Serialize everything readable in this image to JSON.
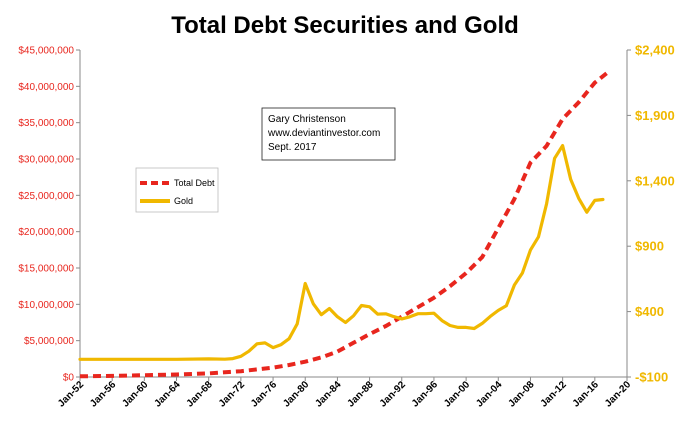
{
  "chart_data": {
    "type": "line",
    "title": "Total Debt Securities and Gold",
    "x_tick_labels": [
      "Jan-52",
      "Jan-56",
      "Jan-60",
      "Jan-64",
      "Jan-68",
      "Jan-72",
      "Jan-76",
      "Jan-80",
      "Jan-84",
      "Jan-88",
      "Jan-92",
      "Jan-96",
      "Jan-00",
      "Jan-04",
      "Jan-08",
      "Jan-12",
      "Jan-16",
      "Jan-20"
    ],
    "xlim": [
      1952,
      2020
    ],
    "y_left": {
      "lim": [
        0,
        45000000
      ],
      "tick_labels": [
        "$0",
        "$5,000,000",
        "$10,000,000",
        "$15,000,000",
        "$20,000,000",
        "$25,000,000",
        "$30,000,000",
        "$35,000,000",
        "$40,000,000",
        "$45,000,000"
      ],
      "color": "#e8261e"
    },
    "y_right": {
      "lim": [
        -100,
        2400
      ],
      "tick_labels": [
        "-$100",
        "$400",
        "$900",
        "$1,400",
        "$1,900",
        "$2,400"
      ],
      "color": "#f0b800"
    },
    "series": [
      {
        "name": "Total Debt",
        "axis": "left",
        "color": "#e8261e",
        "style": "dashed",
        "x": [
          1952,
          1956,
          1960,
          1964,
          1968,
          1972,
          1976,
          1978,
          1980,
          1982,
          1984,
          1986,
          1988,
          1990,
          1992,
          1994,
          1996,
          1998,
          2000,
          2002,
          2004,
          2006,
          2008,
          2010,
          2012,
          2014,
          2016,
          2017.7
        ],
        "values": [
          100000,
          150000,
          250000,
          350000,
          500000,
          800000,
          1300000,
          1650000,
          2100000,
          2700000,
          3500000,
          4700000,
          5900000,
          7000000,
          8300000,
          9600000,
          10900000,
          12500000,
          14300000,
          16500000,
          20500000,
          24500000,
          29500000,
          31800000,
          35500000,
          37800000,
          40500000,
          42000000
        ]
      },
      {
        "name": "Gold",
        "axis": "right",
        "color": "#f0b800",
        "style": "solid",
        "x": [
          1952,
          1956,
          1960,
          1964,
          1968,
          1970,
          1971,
          1972,
          1973,
          1974,
          1975,
          1976,
          1977,
          1978,
          1979,
          1980,
          1981,
          1982,
          1983,
          1984,
          1985,
          1986,
          1987,
          1988,
          1989,
          1990,
          1991,
          1992,
          1993,
          1994,
          1995,
          1996,
          1997,
          1998,
          1999,
          2000,
          2001,
          2002,
          2003,
          2004,
          2005,
          2006,
          2007,
          2008,
          2009,
          2010,
          2011,
          2012,
          2013,
          2014,
          2015,
          2016,
          2017
        ],
        "values": [
          35,
          35,
          35,
          35,
          38,
          36,
          41,
          58,
          97,
          154,
          161,
          125,
          148,
          193,
          306,
          615,
          460,
          376,
          424,
          361,
          317,
          368,
          447,
          437,
          381,
          383,
          362,
          344,
          360,
          384,
          384,
          388,
          331,
          294,
          279,
          279,
          271,
          310,
          363,
          409,
          444,
          603,
          695,
          872,
          972,
          1225,
          1572,
          1669,
          1411,
          1266,
          1160,
          1250,
          1257
        ]
      }
    ],
    "legend": {
      "placement": "left-middle",
      "entries": [
        "Total Debt",
        "Gold"
      ]
    },
    "annotation": {
      "lines": [
        "Gary Christenson",
        "www.deviantinvestor.com",
        "Sept. 2017"
      ]
    },
    "grid": false
  }
}
